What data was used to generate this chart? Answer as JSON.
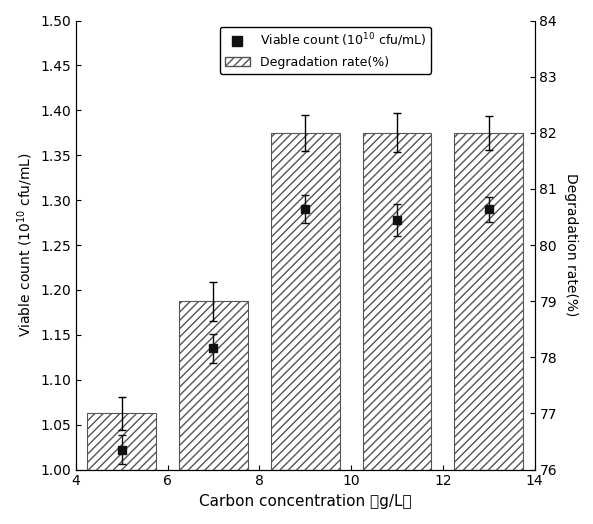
{
  "x_positions": [
    5,
    7,
    9,
    11,
    13
  ],
  "deg_rate": [
    77.0,
    79.0,
    82.0,
    82.0,
    82.0
  ],
  "deg_errors": [
    0.3,
    0.35,
    0.32,
    0.35,
    0.3
  ],
  "scatter_y": [
    1.022,
    1.135,
    1.29,
    1.278,
    1.29
  ],
  "scatter_errors": [
    0.016,
    0.016,
    0.016,
    0.018,
    0.014
  ],
  "bar_color": "#ffffff",
  "bar_edgecolor": "#555555",
  "scatter_color": "#111111",
  "left_ylim": [
    1.0,
    1.5
  ],
  "left_yticks": [
    1.0,
    1.05,
    1.1,
    1.15,
    1.2,
    1.25,
    1.3,
    1.35,
    1.4,
    1.45,
    1.5
  ],
  "right_ylim": [
    76,
    84
  ],
  "right_yticks": [
    76,
    77,
    78,
    79,
    80,
    81,
    82,
    83,
    84
  ],
  "xlim": [
    4,
    14
  ],
  "xticks": [
    4,
    6,
    8,
    10,
    12,
    14
  ],
  "xlabel": "Carbon concentration （g/L）",
  "ylabel_left": "Viable count (10$^{10}$ cfu/mL)",
  "ylabel_right": "Degradation rate(%)",
  "legend_label_scatter": "Viable count (10$^{10}$ cfu/mL)",
  "legend_label_bar": "Degradation rate(%)",
  "hatch": "////",
  "bar_width": 1.5,
  "figsize": [
    5.93,
    5.24
  ],
  "dpi": 100
}
